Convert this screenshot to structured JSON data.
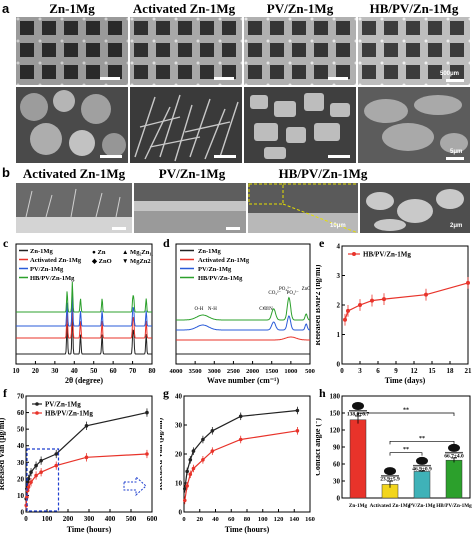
{
  "panel_a": {
    "label": "a",
    "titles": [
      "Zn-1Mg",
      "Activated Zn-1Mg",
      "PV/Zn-1Mg",
      "HB/PV/Zn-1Mg"
    ],
    "scale_top": "500μm",
    "scale_bottom": "5μm"
  },
  "panel_b": {
    "label": "b",
    "titles": [
      "Activated Zn-1Mg",
      "PV/Zn-1Mg",
      "HB/PV/Zn-1Mg"
    ],
    "scale_inset": "10μm",
    "scale_zoom": "2μm"
  },
  "colors": {
    "black": "#222222",
    "red": "#e8332a",
    "blue": "#2a5bd8",
    "green": "#2ca02c",
    "teal": "#3fb2b8",
    "yellow": "#f2d51c"
  },
  "chart_data": [
    {
      "id": "c",
      "type": "line",
      "panel_label": "c",
      "xlabel": "2θ (degree)",
      "ylabel": "Intensity (a.u.)",
      "xlim": [
        10,
        80
      ],
      "xticks": [
        10,
        20,
        30,
        40,
        50,
        60,
        70,
        80
      ],
      "series": [
        {
          "name": "Zn-1Mg",
          "color": "#222222"
        },
        {
          "name": "Activated Zn-1Mg",
          "color": "#e8332a"
        },
        {
          "name": "PV/Zn-1Mg",
          "color": "#2a5bd8"
        },
        {
          "name": "HB/PV/Zn-1Mg",
          "color": "#2ca02c"
        }
      ],
      "peaks": [
        36.3,
        39.0,
        43.2,
        54.3,
        70.1,
        70.6,
        77.0
      ],
      "legend_markers": [
        "● Zn",
        "▲ Mg₂Zn₁₁",
        "◆ ZnO",
        "▼ MgZn2"
      ]
    },
    {
      "id": "d",
      "type": "line",
      "panel_label": "d",
      "xlabel": "Wave number (cm⁻¹)",
      "ylabel": "Absorbance (a.u.)",
      "xlim": [
        4000,
        500
      ],
      "xticks": [
        4000,
        3500,
        3000,
        2500,
        2000,
        1500,
        1000,
        500
      ],
      "series": [
        {
          "name": "Zn-1Mg",
          "color": "#222222"
        },
        {
          "name": "Activated Zn-1Mg",
          "color": "#e8332a"
        },
        {
          "name": "PV/Zn-1Mg",
          "color": "#2a5bd8"
        },
        {
          "name": "HB/PV/Zn-1Mg",
          "color": "#2ca02c"
        }
      ],
      "annotations": [
        "O-H",
        "N-H",
        "C=C",
        "C=N",
        "CO₃²⁻",
        "PO₄³⁻",
        "PO₄³⁻",
        "ZnO"
      ]
    },
    {
      "id": "e",
      "type": "line",
      "panel_label": "e",
      "xlabel": "Time (days)",
      "ylabel": "Released BMP2 (ng/ml)",
      "xlim": [
        0,
        21
      ],
      "ylim": [
        0,
        4
      ],
      "xticks": [
        0,
        3,
        6,
        9,
        12,
        15,
        18,
        21
      ],
      "yticks": [
        0,
        1,
        2,
        3,
        4
      ],
      "series": [
        {
          "name": "HB/PV/Zn-1Mg",
          "color": "#e8332a",
          "x": [
            0.5,
            1,
            3,
            5,
            7,
            14,
            21
          ],
          "y": [
            1.5,
            1.8,
            2.0,
            2.15,
            2.2,
            2.35,
            2.75
          ]
        }
      ]
    },
    {
      "id": "f",
      "type": "line",
      "panel_label": "f",
      "xlabel": "Time (hours)",
      "ylabel": "Released Van (μg/ml)",
      "xlim": [
        0,
        600
      ],
      "ylim": [
        0,
        70
      ],
      "xticks": [
        0,
        100,
        200,
        300,
        400,
        500,
        600
      ],
      "yticks": [
        0,
        10,
        20,
        30,
        40,
        50,
        60,
        70
      ],
      "series": [
        {
          "name": "PV/Zn-1Mg",
          "color": "#222222",
          "x": [
            1,
            4,
            8,
            12,
            24,
            48,
            72,
            144,
            288,
            576
          ],
          "y": [
            8,
            14,
            18,
            20,
            24,
            28,
            31,
            35,
            52,
            60
          ]
        },
        {
          "name": "HB/PV/Zn-1Mg",
          "color": "#e8332a",
          "x": [
            1,
            4,
            8,
            12,
            24,
            48,
            72,
            144,
            288,
            576
          ],
          "y": [
            4,
            9,
            13,
            15,
            18,
            22,
            24,
            28,
            33,
            35
          ]
        }
      ]
    },
    {
      "id": "g",
      "type": "line",
      "panel_label": "g",
      "xlabel": "Time (hours)",
      "ylabel": "Released Van (μg/ml)",
      "xlim": [
        0,
        160
      ],
      "ylim": [
        0,
        40
      ],
      "xticks": [
        0,
        20,
        40,
        60,
        80,
        100,
        120,
        140,
        160
      ],
      "yticks": [
        0,
        10,
        20,
        30,
        40
      ],
      "series": [
        {
          "name": "PV/Zn-1Mg",
          "color": "#222222",
          "x": [
            1,
            4,
            8,
            12,
            24,
            36,
            72,
            144
          ],
          "y": [
            8,
            14,
            18,
            21,
            25,
            28,
            33,
            35
          ]
        },
        {
          "name": "HB/PV/Zn-1Mg",
          "color": "#e8332a",
          "x": [
            1,
            4,
            8,
            12,
            24,
            36,
            72,
            144
          ],
          "y": [
            4,
            9,
            13,
            15,
            18,
            21,
            25,
            28
          ]
        }
      ]
    },
    {
      "id": "h",
      "type": "bar",
      "panel_label": "h",
      "ylabel": "Contact angle (°)",
      "ylim": [
        0,
        180
      ],
      "yticks": [
        0,
        30,
        60,
        90,
        120,
        150,
        180
      ],
      "categories": [
        "Zn-1Mg",
        "Activated Zn-1Mg",
        "PV/Zn-1Mg",
        "HB/PV/Zn-1Mg"
      ],
      "values": [
        138.0,
        23.9,
        46.9,
        66.7
      ],
      "errors": [
        6.7,
        5.9,
        0.9,
        4.0
      ],
      "labels": [
        "138.0±6.7",
        "23.9±5.9",
        "46.9±0.9",
        "66.7±4.0"
      ],
      "colors": [
        "#e8332a",
        "#f2d51c",
        "#3fb2b8",
        "#2ca02c"
      ],
      "significance": [
        "**",
        "**",
        "**"
      ]
    }
  ]
}
